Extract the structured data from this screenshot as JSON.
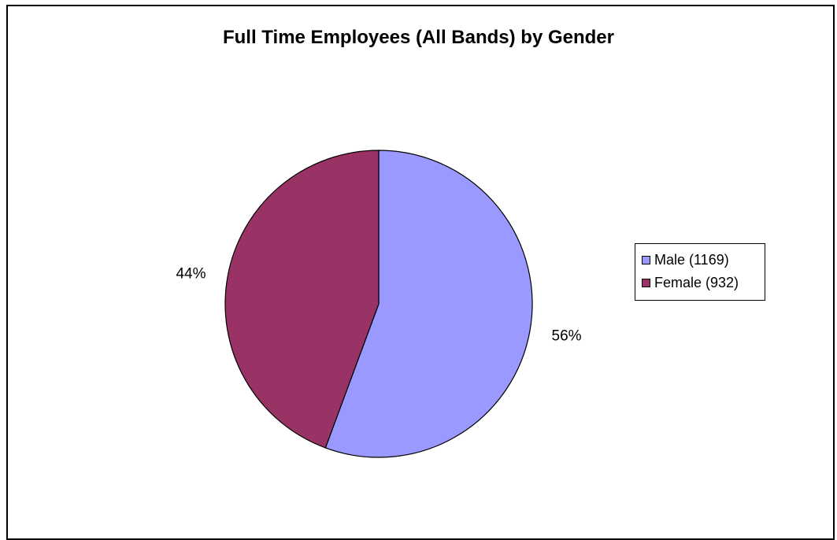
{
  "chart_data": {
    "type": "pie",
    "title": "Full Time Employees (All Bands) by Gender",
    "categories": [
      "Male (1169)",
      "Female (932)"
    ],
    "values": [
      1169,
      932
    ],
    "percent_labels": [
      "56%",
      "44%"
    ],
    "colors": [
      "#9999FF",
      "#993366"
    ],
    "start_angle_deg": 0,
    "direction": "clockwise",
    "legend_position": "right"
  }
}
